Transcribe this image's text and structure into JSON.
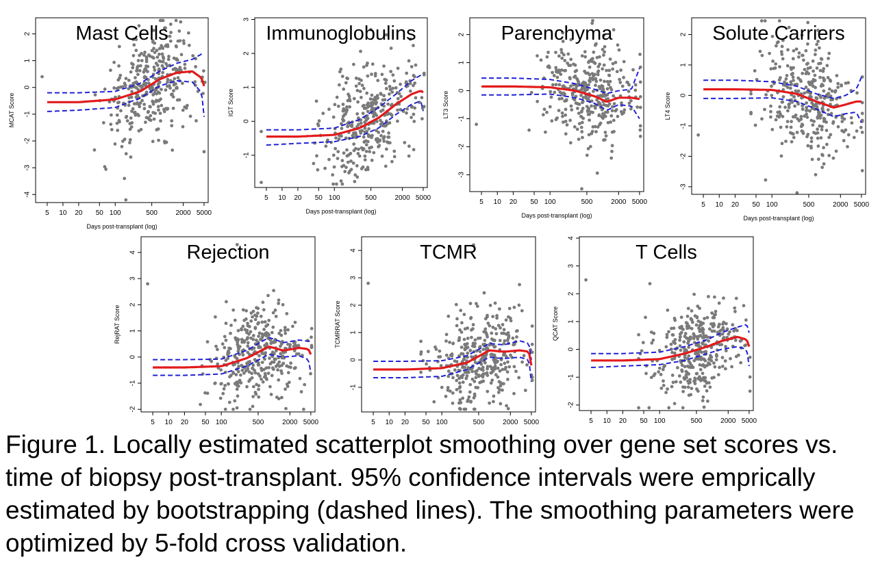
{
  "caption": "Figure 1. Locally estimated scatterplot smoothing over gene set scores vs. time of biopsy post-transplant. 95% confidence intervals were emprically estimated by bootstrapping (dashed lines). The smoothing parameters were optimized by 5-fold cross validation.",
  "colors": {
    "points": "#7a7a7a",
    "loess": "#e31a1c",
    "ci": "#1f1fd6"
  },
  "chart_data": [
    {
      "type": "scatter",
      "title": "Mast Cells",
      "xlabel": "Days post-transplant (log)",
      "ylabel": "MCAT Score",
      "xscale": "log",
      "xlim": [
        3,
        6000
      ],
      "ylim": [
        -4.3,
        2.6
      ],
      "xticks": [
        5,
        10,
        20,
        50,
        100,
        500,
        2000,
        5000
      ],
      "yticks": [
        -4,
        -3,
        -2,
        -1,
        0,
        1,
        2
      ],
      "grid": false,
      "loess": {
        "x": [
          5,
          20,
          100,
          300,
          700,
          1500,
          3000,
          4500,
          5000
        ],
        "y": [
          -0.55,
          -0.55,
          -0.45,
          -0.15,
          0.3,
          0.55,
          0.6,
          0.35,
          0.05
        ]
      },
      "ci_upper": {
        "x": [
          5,
          20,
          100,
          300,
          700,
          1500,
          3000,
          5000
        ],
        "y": [
          -0.2,
          -0.2,
          -0.15,
          0.15,
          0.6,
          0.9,
          1.05,
          1.3
        ]
      },
      "ci_lower": {
        "x": [
          5,
          20,
          100,
          300,
          700,
          1500,
          3000,
          4500,
          5000
        ],
        "y": [
          -0.9,
          -0.85,
          -0.75,
          -0.4,
          0.05,
          0.25,
          0.2,
          -0.2,
          -1.1
        ]
      },
      "points_spread": {
        "center_x": 500,
        "sd_logx": 0.45,
        "sd_y": 0.9
      },
      "outliers": [
        {
          "x": 4,
          "y": 0.4
        },
        {
          "x": 150,
          "y": -3.4
        },
        {
          "x": 160,
          "y": -4.2
        },
        {
          "x": 5000,
          "y": -2.4
        }
      ]
    },
    {
      "type": "scatter",
      "title": "Immunoglobulins",
      "xlabel": "Days post-transplant (log)",
      "ylabel": "IGT Score",
      "xscale": "log",
      "xlim": [
        3,
        6000
      ],
      "ylim": [
        -1.95,
        3.05
      ],
      "xticks": [
        5,
        10,
        20,
        50,
        100,
        500,
        2000,
        5000
      ],
      "yticks": [
        -1,
        0,
        1,
        2,
        3
      ],
      "grid": false,
      "loess": {
        "x": [
          5,
          20,
          100,
          300,
          700,
          1500,
          3000,
          4500,
          5000
        ],
        "y": [
          -0.45,
          -0.45,
          -0.4,
          -0.2,
          0.1,
          0.5,
          0.8,
          0.9,
          0.85
        ]
      },
      "ci_upper": {
        "x": [
          5,
          20,
          100,
          300,
          700,
          1500,
          3000,
          5000
        ],
        "y": [
          -0.25,
          -0.25,
          -0.2,
          0.05,
          0.4,
          0.8,
          1.2,
          1.4
        ]
      },
      "ci_lower": {
        "x": [
          5,
          20,
          100,
          300,
          700,
          1500,
          3000,
          4500,
          5000
        ],
        "y": [
          -0.7,
          -0.65,
          -0.6,
          -0.45,
          -0.2,
          0.2,
          0.5,
          0.6,
          0.3
        ]
      },
      "points_spread": {
        "center_x": 500,
        "sd_logx": 0.45,
        "sd_y": 0.85
      },
      "outliers": [
        {
          "x": 4,
          "y": -0.3
        },
        {
          "x": 4,
          "y": -1.8
        }
      ]
    },
    {
      "type": "scatter",
      "title": "Parenchyma",
      "xlabel": "Days post-transplant (log)",
      "ylabel": "LT3 Score",
      "xscale": "log",
      "xlim": [
        3,
        6000
      ],
      "ylim": [
        -3.6,
        2.6
      ],
      "xticks": [
        5,
        10,
        20,
        50,
        100,
        500,
        2000,
        5000
      ],
      "yticks": [
        -3,
        -2,
        -1,
        0,
        1,
        2
      ],
      "grid": false,
      "loess": {
        "x": [
          5,
          20,
          100,
          300,
          700,
          1200,
          2000,
          3500,
          5000
        ],
        "y": [
          0.15,
          0.15,
          0.12,
          0.0,
          -0.2,
          -0.4,
          -0.25,
          -0.25,
          -0.3
        ]
      },
      "ci_upper": {
        "x": [
          5,
          20,
          100,
          300,
          700,
          1200,
          2000,
          3500,
          5000
        ],
        "y": [
          0.45,
          0.45,
          0.4,
          0.25,
          0.05,
          -0.1,
          0.0,
          0.05,
          0.8
        ]
      },
      "ci_lower": {
        "x": [
          5,
          20,
          100,
          300,
          700,
          1200,
          2000,
          3500,
          5000
        ],
        "y": [
          -0.15,
          -0.15,
          -0.12,
          -0.25,
          -0.45,
          -0.7,
          -0.5,
          -0.55,
          -1.0
        ]
      },
      "points_spread": {
        "center_x": 500,
        "sd_logx": 0.45,
        "sd_y": 0.95
      },
      "outliers": [
        {
          "x": 4,
          "y": -1.2
        },
        {
          "x": 400,
          "y": -3.5
        }
      ]
    },
    {
      "type": "scatter",
      "title": "Solute Carriers",
      "xlabel": "Days post-transplant (log)",
      "ylabel": "LT4 Score",
      "xscale": "log",
      "xlim": [
        3,
        6000
      ],
      "ylim": [
        -3.25,
        2.55
      ],
      "xticks": [
        5,
        10,
        20,
        50,
        100,
        500,
        2000,
        5000
      ],
      "yticks": [
        -3,
        -2,
        -1,
        0,
        1,
        2
      ],
      "grid": false,
      "loess": {
        "x": [
          5,
          20,
          100,
          300,
          700,
          1500,
          2500,
          4000,
          5000
        ],
        "y": [
          0.2,
          0.2,
          0.18,
          0.05,
          -0.2,
          -0.4,
          -0.3,
          -0.2,
          -0.2
        ]
      },
      "ci_upper": {
        "x": [
          5,
          20,
          100,
          300,
          700,
          1500,
          2500,
          4000,
          5000
        ],
        "y": [
          0.5,
          0.5,
          0.45,
          0.3,
          0.05,
          -0.1,
          0.0,
          0.2,
          0.6
        ]
      },
      "ci_lower": {
        "x": [
          5,
          20,
          100,
          300,
          700,
          1500,
          2500,
          4000,
          5000
        ],
        "y": [
          -0.1,
          -0.1,
          -0.08,
          -0.2,
          -0.45,
          -0.7,
          -0.6,
          -0.55,
          -0.9
        ]
      },
      "points_spread": {
        "center_x": 500,
        "sd_logx": 0.45,
        "sd_y": 0.95
      },
      "outliers": [
        {
          "x": 4,
          "y": -1.3
        },
        {
          "x": 300,
          "y": -3.2
        }
      ]
    },
    {
      "type": "scatter",
      "title": "Rejection",
      "xlabel": "",
      "ylabel": "RejRAT Score",
      "xscale": "log",
      "xlim": [
        3,
        6000
      ],
      "ylim": [
        -2.1,
        4.6
      ],
      "xticks": [
        5,
        10,
        20,
        50,
        100,
        500,
        2000,
        5000
      ],
      "yticks": [
        -2,
        -1,
        0,
        1,
        2,
        3,
        4
      ],
      "grid": false,
      "loess": {
        "x": [
          5,
          20,
          100,
          300,
          800,
          1500,
          3000,
          4500,
          5000
        ],
        "y": [
          -0.4,
          -0.4,
          -0.35,
          -0.05,
          0.4,
          0.25,
          0.35,
          0.3,
          0.1
        ]
      },
      "ci_upper": {
        "x": [
          5,
          20,
          100,
          300,
          800,
          1500,
          3000,
          4500,
          5000
        ],
        "y": [
          -0.1,
          -0.1,
          -0.08,
          0.25,
          0.75,
          0.55,
          0.65,
          0.6,
          0.6
        ]
      },
      "ci_lower": {
        "x": [
          5,
          20,
          100,
          300,
          800,
          1500,
          3000,
          4500,
          5000
        ],
        "y": [
          -0.7,
          -0.7,
          -0.65,
          -0.35,
          0.1,
          0.0,
          0.05,
          -0.1,
          -0.6
        ]
      },
      "points_spread": {
        "center_x": 500,
        "sd_logx": 0.45,
        "sd_y": 0.95
      },
      "outliers": [
        {
          "x": 4,
          "y": 2.8
        },
        {
          "x": 200,
          "y": 4.3
        }
      ]
    },
    {
      "type": "scatter",
      "title": "TCMR",
      "xlabel": "",
      "ylabel": "TCMRRAT Score",
      "xscale": "log",
      "xlim": [
        3,
        6000
      ],
      "ylim": [
        -1.9,
        4.5
      ],
      "xticks": [
        5,
        10,
        20,
        50,
        100,
        500,
        2000,
        5000
      ],
      "yticks": [
        -1,
        0,
        1,
        2,
        3,
        4
      ],
      "grid": false,
      "loess": {
        "x": [
          5,
          20,
          100,
          300,
          800,
          1500,
          3000,
          4500,
          5000
        ],
        "y": [
          -0.35,
          -0.35,
          -0.3,
          -0.1,
          0.35,
          0.3,
          0.35,
          0.3,
          -0.2
        ]
      },
      "ci_upper": {
        "x": [
          5,
          20,
          100,
          300,
          800,
          1500,
          3000,
          4500,
          5000
        ],
        "y": [
          -0.05,
          -0.05,
          -0.03,
          0.15,
          0.6,
          0.55,
          0.7,
          0.6,
          0.0
        ]
      },
      "ci_lower": {
        "x": [
          5,
          20,
          100,
          300,
          800,
          1500,
          3000,
          4500,
          5000
        ],
        "y": [
          -0.65,
          -0.65,
          -0.6,
          -0.35,
          0.1,
          0.05,
          0.1,
          0.0,
          -0.8
        ]
      },
      "points_spread": {
        "center_x": 500,
        "sd_logx": 0.45,
        "sd_y": 0.85
      },
      "outliers": [
        {
          "x": 4,
          "y": 2.8
        },
        {
          "x": 400,
          "y": 4.2
        }
      ]
    },
    {
      "type": "scatter",
      "title": "T Cells",
      "xlabel": "",
      "ylabel": "QCAT Score",
      "xscale": "log",
      "xlim": [
        3,
        6000
      ],
      "ylim": [
        -2.2,
        4.05
      ],
      "xticks": [
        5,
        10,
        20,
        50,
        100,
        500,
        2000,
        5000
      ],
      "yticks": [
        -2,
        -1,
        0,
        1,
        2,
        3,
        4
      ],
      "grid": false,
      "loess": {
        "x": [
          5,
          20,
          100,
          300,
          800,
          1500,
          3000,
          4500,
          5000
        ],
        "y": [
          -0.4,
          -0.4,
          -0.35,
          -0.15,
          0.1,
          0.3,
          0.45,
          0.35,
          0.1
        ]
      },
      "ci_upper": {
        "x": [
          5,
          20,
          100,
          300,
          800,
          1500,
          3000,
          4500,
          5000
        ],
        "y": [
          -0.15,
          -0.15,
          -0.1,
          0.1,
          0.35,
          0.6,
          0.8,
          0.9,
          0.6
        ]
      },
      "ci_lower": {
        "x": [
          5,
          20,
          100,
          300,
          800,
          1500,
          3000,
          4500,
          5000
        ],
        "y": [
          -0.65,
          -0.6,
          -0.55,
          -0.4,
          -0.15,
          0.0,
          0.1,
          0.0,
          -0.6
        ]
      },
      "points_spread": {
        "center_x": 500,
        "sd_logx": 0.45,
        "sd_y": 0.8
      },
      "outliers": [
        {
          "x": 4,
          "y": 2.5
        },
        {
          "x": 150,
          "y": -2.1
        }
      ]
    }
  ]
}
